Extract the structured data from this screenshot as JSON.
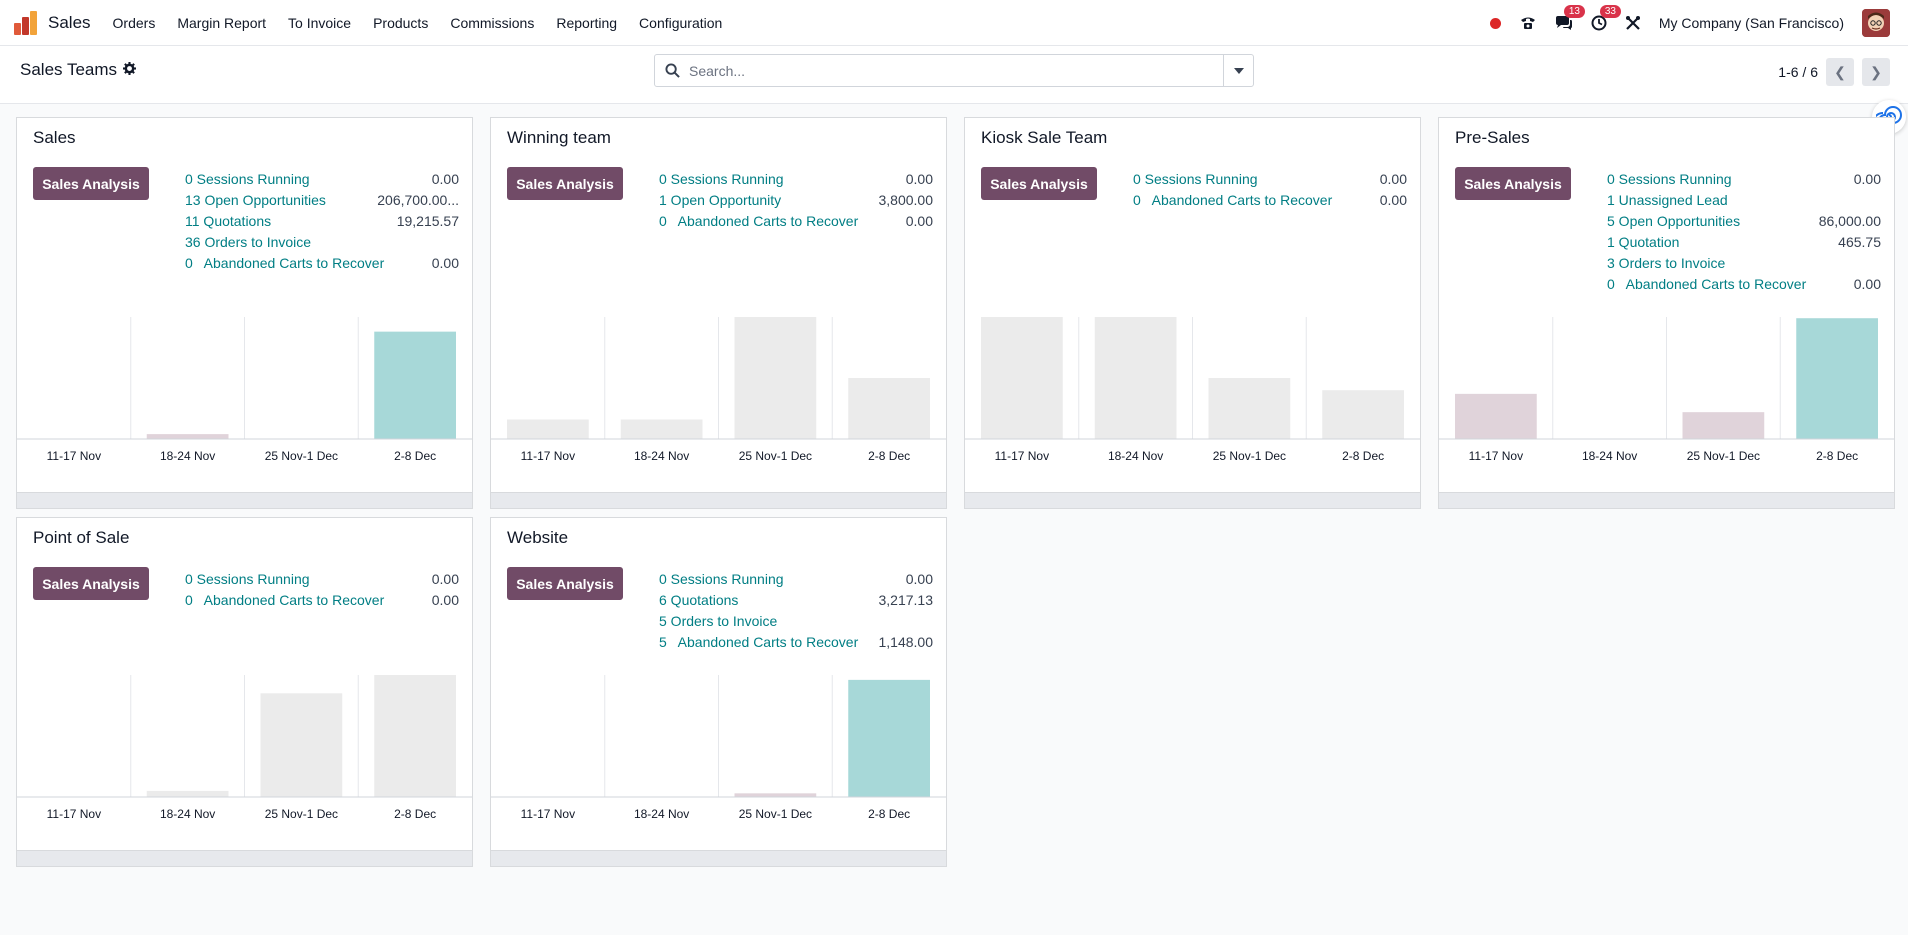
{
  "navbar": {
    "app_name": "Sales",
    "menu": [
      "Orders",
      "Margin Report",
      "To Invoice",
      "Products",
      "Commissions",
      "Reporting",
      "Configuration"
    ],
    "messages_count": "13",
    "activities_count": "33",
    "company": "My Company (San Francisco)"
  },
  "control": {
    "title": "Sales Teams",
    "search_placeholder": "Search...",
    "pager": "1-6 / 6"
  },
  "colors": {
    "brand": "#714b67",
    "link": "#017e84",
    "bar_current": "#a7d8d8",
    "bar_neutral": "#ebebeb",
    "bar_pink": "#e0d3da"
  },
  "teams": [
    {
      "name": "Sales",
      "button": "Sales Analysis",
      "stats": [
        {
          "label": "0 Sessions Running",
          "value": "0.00"
        },
        {
          "label": "13 Open Opportunities",
          "value": "206,700.00..."
        },
        {
          "label": "11 Quotations",
          "value": "19,215.57"
        },
        {
          "label": "36 Orders to Invoice",
          "value": ""
        },
        {
          "label": "0   Abandoned Carts to Recover",
          "value": "0.00"
        }
      ],
      "chart_data": {
        "type": "bar",
        "categories": [
          "11-17 Nov",
          "18-24 Nov",
          "25 Nov-1 Dec",
          "2-8 Dec"
        ],
        "values": [
          0,
          0.04,
          0,
          0.88
        ],
        "colors": [
          "neutral",
          "pink",
          "neutral",
          "current"
        ]
      }
    },
    {
      "name": "Winning team",
      "button": "Sales Analysis",
      "stats": [
        {
          "label": "0 Sessions Running",
          "value": "0.00"
        },
        {
          "label": "1 Open Opportunity",
          "value": "3,800.00"
        },
        {
          "label": "0   Abandoned Carts to Recover",
          "value": "0.00"
        }
      ],
      "chart_data": {
        "type": "bar",
        "categories": [
          "11-17 Nov",
          "18-24 Nov",
          "25 Nov-1 Dec",
          "2-8 Dec"
        ],
        "values": [
          0.16,
          0.16,
          1.0,
          0.5
        ],
        "colors": [
          "neutral",
          "neutral",
          "neutral",
          "neutral"
        ]
      }
    },
    {
      "name": "Kiosk Sale Team",
      "button": "Sales Analysis",
      "stats": [
        {
          "label": "0 Sessions Running",
          "value": "0.00"
        },
        {
          "label": "0   Abandoned Carts to Recover",
          "value": "0.00"
        }
      ],
      "chart_data": {
        "type": "bar",
        "categories": [
          "11-17 Nov",
          "18-24 Nov",
          "25 Nov-1 Dec",
          "2-8 Dec"
        ],
        "values": [
          1.0,
          1.0,
          0.5,
          0.4
        ],
        "colors": [
          "neutral",
          "neutral",
          "neutral",
          "neutral"
        ]
      }
    },
    {
      "name": "Pre-Sales",
      "button": "Sales Analysis",
      "stats": [
        {
          "label": "0 Sessions Running",
          "value": "0.00"
        },
        {
          "label": "1 Unassigned Lead",
          "value": ""
        },
        {
          "label": "5 Open Opportunities",
          "value": "86,000.00"
        },
        {
          "label": "1 Quotation",
          "value": "465.75"
        },
        {
          "label": "3 Orders to Invoice",
          "value": ""
        },
        {
          "label": "0   Abandoned Carts to Recover",
          "value": "0.00"
        }
      ],
      "chart_data": {
        "type": "bar",
        "categories": [
          "11-17 Nov",
          "18-24 Nov",
          "25 Nov-1 Dec",
          "2-8 Dec"
        ],
        "values": [
          0.37,
          0,
          0.22,
          0.99
        ],
        "colors": [
          "pink",
          "neutral",
          "pink",
          "current"
        ]
      }
    },
    {
      "name": "Point of Sale",
      "button": "Sales Analysis",
      "stats": [
        {
          "label": "0 Sessions Running",
          "value": "0.00"
        },
        {
          "label": "0   Abandoned Carts to Recover",
          "value": "0.00"
        }
      ],
      "chart_data": {
        "type": "bar",
        "categories": [
          "11-17 Nov",
          "18-24 Nov",
          "25 Nov-1 Dec",
          "2-8 Dec"
        ],
        "values": [
          0,
          0.05,
          0.85,
          1.0
        ],
        "colors": [
          "neutral",
          "neutral",
          "neutral",
          "neutral"
        ]
      }
    },
    {
      "name": "Website",
      "button": "Sales Analysis",
      "stats": [
        {
          "label": "0 Sessions Running",
          "value": "0.00"
        },
        {
          "label": "6 Quotations",
          "value": "3,217.13"
        },
        {
          "label": "5 Orders to Invoice",
          "value": ""
        },
        {
          "label": "5   Abandoned Carts to Recover",
          "value": "1,148.00"
        }
      ],
      "chart_data": {
        "type": "bar",
        "categories": [
          "11-17 Nov",
          "18-24 Nov",
          "25 Nov-1 Dec",
          "2-8 Dec"
        ],
        "values": [
          0,
          0,
          0.03,
          0.96
        ],
        "colors": [
          "neutral",
          "neutral",
          "pink",
          "current"
        ]
      }
    }
  ]
}
